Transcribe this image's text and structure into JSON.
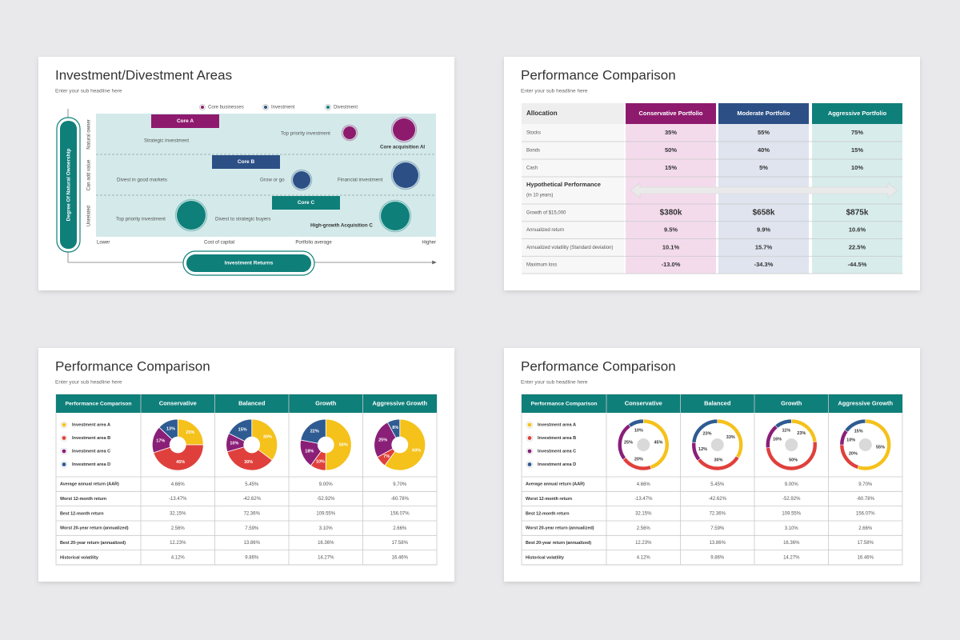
{
  "slides": [
    {
      "title": "Investment/Divestment Areas",
      "subtitle": "Enter your sub headline here",
      "legend": [
        "Core businesses",
        "Investment",
        "Divestment"
      ],
      "y_axis_title": "Degree Of Natural Ownership",
      "x_axis_title": "Investment Returns",
      "row_labels": [
        "Natural owner",
        "Can add value",
        "Unrelated"
      ],
      "x_labels": [
        "Lower",
        "Cost of capital",
        "Portfolio average",
        "Higher"
      ],
      "boxes": [
        "Core A",
        "Core B",
        "Core C"
      ],
      "notes": [
        "Strategic investment",
        "Top priority investment",
        "Core acquisition AI",
        "Divest in good markets",
        "Grow or go",
        "Financial investment",
        "Top priority investment",
        "Divest to strategic buyers",
        "High-growth Acquisition C"
      ]
    },
    {
      "title": "Performance Comparison",
      "subtitle": "Enter your sub headline here",
      "header": [
        "Allocation",
        "Conservative Portfolio",
        "Moderate Portfolio",
        "Aggressive Portfolio"
      ],
      "allocation_rows": [
        [
          "Stocks",
          "35%",
          "55%",
          "75%"
        ],
        [
          "Bonds",
          "50%",
          "40%",
          "15%"
        ],
        [
          "Cash",
          "15%",
          "5%",
          "10%"
        ]
      ],
      "section": {
        "title": "Hypothetical Performance",
        "note": "(in 10 years)"
      },
      "performance_rows": [
        [
          "Growth of $15,000",
          "$380k",
          "$658k",
          "$875k"
        ],
        [
          "Annualized return",
          "9.5%",
          "9.9%",
          "10.6%"
        ],
        [
          "Annualized volatility (Standard deviation)",
          "10.1%",
          "15.7%",
          "22.5%"
        ],
        [
          "Maximum loss",
          "-13.0%",
          "-34.3%",
          "-44.5%"
        ]
      ]
    },
    {
      "title": "Performance Comparison",
      "subtitle": "Enter your sub headline here",
      "chart_style": "pie",
      "header": [
        "Performance Comparison",
        "Conservative",
        "Balanced",
        "Growth",
        "Aggressive Growth"
      ],
      "legend": [
        "Investment area A",
        "Investment area B",
        "Investment area C",
        "Investment area D"
      ],
      "colors": [
        "#f5c11b",
        "#e0403c",
        "#8a1f78",
        "#2e5b92"
      ],
      "charts": [
        {
          "values": [
            25,
            45,
            17,
            13
          ],
          "value_labels": [
            "25%",
            "45%",
            "17%",
            "13%"
          ]
        },
        {
          "values": [
            30,
            30,
            10,
            15
          ],
          "value_labels": [
            "30%",
            "30%",
            "10%",
            "15%"
          ]
        },
        {
          "values": [
            50,
            10,
            18,
            22
          ],
          "value_labels": [
            "50%",
            "10%",
            "18%",
            "22%"
          ]
        },
        {
          "values": [
            60,
            7,
            25,
            8
          ],
          "value_labels": [
            "60%",
            "7%",
            "25%",
            "8%"
          ]
        }
      ],
      "rows": [
        [
          "Average annual return (AAR)",
          "4.66%",
          "5.45%",
          "9.00%",
          "9.70%"
        ],
        [
          "Worst 12-month return",
          "-13.47%",
          "-42.62%",
          "-52.92%",
          "-60.78%"
        ],
        [
          "Best 12-month return",
          "32.15%",
          "72.36%",
          "109.55%",
          "156.07%"
        ],
        [
          "Worst 20-year return (annualized)",
          "2.56%",
          "7.59%",
          "3.10%",
          "2.66%"
        ],
        [
          "Best 20-year return (annualized)",
          "12.23%",
          "13.86%",
          "16.36%",
          "17.58%"
        ],
        [
          "Historical volatility",
          "4.12%",
          "9.86%",
          "14.27%",
          "16.46%"
        ]
      ]
    },
    {
      "title": "Performance Comparison",
      "subtitle": "Enter your sub headline here",
      "chart_style": "donut",
      "header": [
        "Performance Comparison",
        "Conservative",
        "Balanced",
        "Growth",
        "Aggressive Growth"
      ],
      "legend": [
        "Investment area A",
        "Investment area B",
        "Investment area C",
        "Investment area D"
      ],
      "colors": [
        "#f5c11b",
        "#e0403c",
        "#8a1f78",
        "#2e5b92"
      ],
      "charts": [
        {
          "values": [
            45,
            20,
            25,
            10
          ],
          "value_labels": [
            "45%",
            "20%",
            "25%",
            "10%"
          ]
        },
        {
          "values": [
            33,
            30,
            12,
            23
          ],
          "value_labels": [
            "33%",
            "30%",
            "12%",
            "23%"
          ]
        },
        {
          "values": [
            23,
            50,
            16,
            11
          ],
          "value_labels": [
            "23%",
            "50%",
            "16%",
            "11%"
          ]
        },
        {
          "values": [
            55,
            20,
            10,
            15
          ],
          "value_labels": [
            "55%",
            "20%",
            "10%",
            "15%"
          ]
        }
      ],
      "rows": [
        [
          "Average annual return (AAR)",
          "4.66%",
          "5.45%",
          "9.00%",
          "9.70%"
        ],
        [
          "Worst 12-month return",
          "-13.47%",
          "-42.62%",
          "-52.92%",
          "-60.78%"
        ],
        [
          "Best 12-month return",
          "32.15%",
          "72.36%",
          "109.55%",
          "156.07%"
        ],
        [
          "Worst 20-year return (annualized)",
          "2.56%",
          "7.59%",
          "3.10%",
          "2.66%"
        ],
        [
          "Best 20-year return (annualized)",
          "12.23%",
          "13.86%",
          "16.36%",
          "17.58%"
        ],
        [
          "Historical volatility",
          "4.12%",
          "9.86%",
          "14.27%",
          "16.46%"
        ]
      ]
    }
  ]
}
